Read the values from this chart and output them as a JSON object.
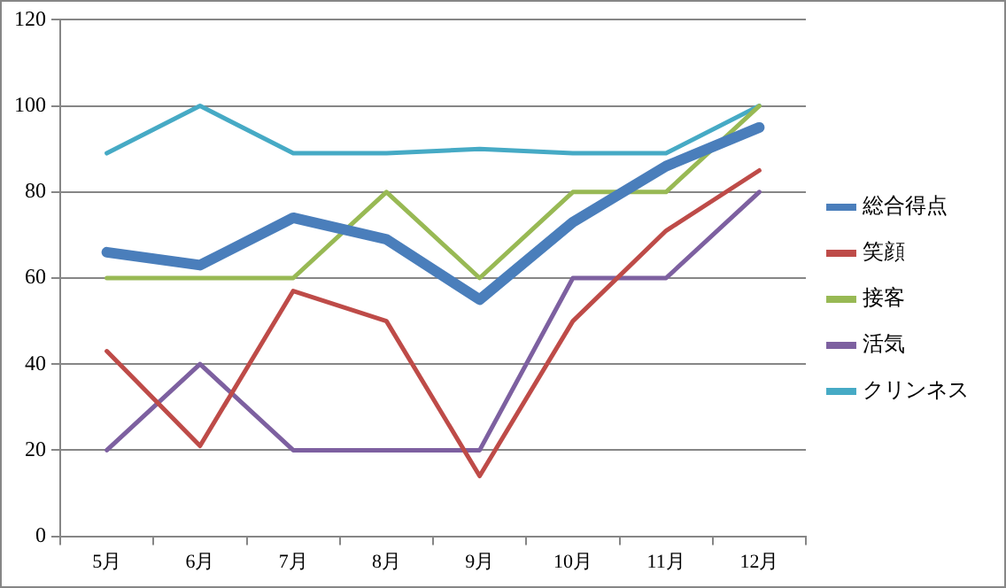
{
  "chart_data": {
    "type": "line",
    "categories": [
      "5月",
      "6月",
      "7月",
      "8月",
      "9月",
      "10月",
      "11月",
      "12月"
    ],
    "series": [
      {
        "name": "総合得点",
        "color": "#4a7ebb",
        "values": [
          66,
          63,
          74,
          69,
          55,
          73,
          86,
          95
        ]
      },
      {
        "name": "笑顔",
        "color": "#be4b48",
        "values": [
          43,
          21,
          57,
          50,
          14,
          50,
          71,
          85
        ]
      },
      {
        "name": "接客",
        "color": "#98b954",
        "values": [
          60,
          60,
          60,
          80,
          60,
          80,
          80,
          100
        ]
      },
      {
        "name": "活気",
        "color": "#7d60a0",
        "values": [
          20,
          40,
          20,
          20,
          20,
          60,
          60,
          80
        ]
      },
      {
        "name": "クリンネス",
        "color": "#46aac5",
        "values": [
          89,
          100,
          89,
          89,
          90,
          89,
          89,
          100
        ]
      }
    ],
    "ylim": [
      0,
      120
    ],
    "yticks": [
      0,
      20,
      40,
      60,
      80,
      100,
      120
    ],
    "grid": "y",
    "legend": "right",
    "marker": "none",
    "line_style": "solid"
  }
}
